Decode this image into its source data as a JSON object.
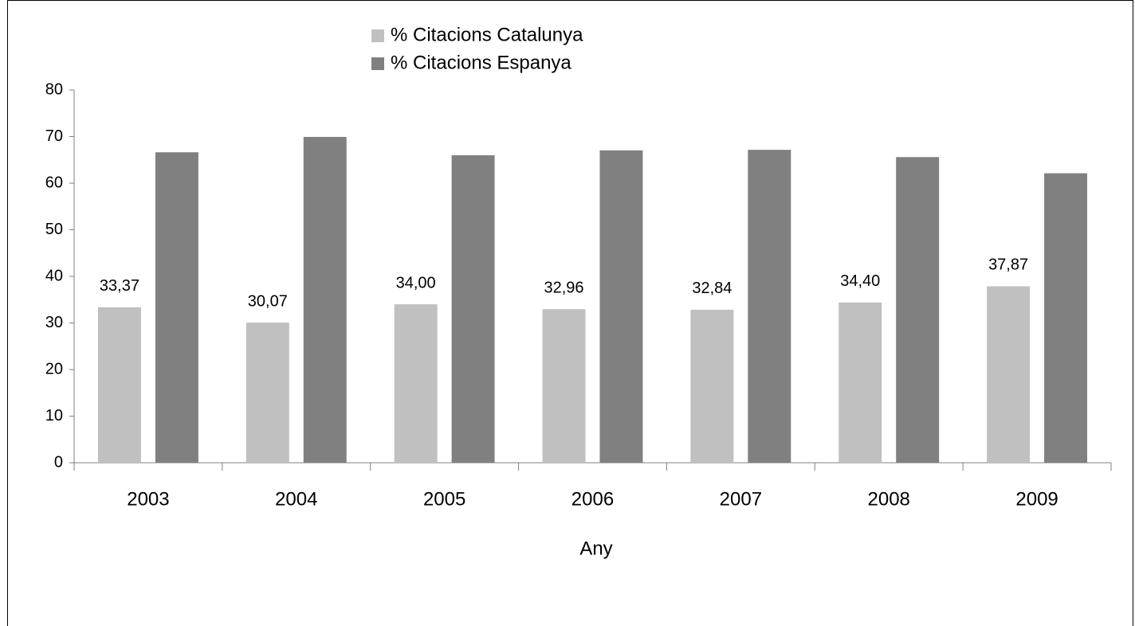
{
  "chart_data": {
    "type": "bar",
    "categories": [
      "2003",
      "2004",
      "2005",
      "2006",
      "2007",
      "2008",
      "2009"
    ],
    "series": [
      {
        "name": "% Citacions Catalunya",
        "color": "#c0c0c0",
        "values": [
          33.37,
          30.07,
          34.0,
          32.96,
          32.84,
          34.4,
          37.87
        ],
        "value_labels": [
          "33,37",
          "30,07",
          "34,00",
          "32,96",
          "32,84",
          "34,40",
          "37,87"
        ]
      },
      {
        "name": "% Citacions Espanya",
        "color": "#808080",
        "values": [
          66.63,
          69.93,
          66.0,
          67.04,
          67.16,
          65.6,
          62.13
        ]
      }
    ],
    "x_label": "Any",
    "ylim": [
      0,
      80
    ],
    "yticks": [
      0,
      10,
      20,
      30,
      40,
      50,
      60,
      70,
      80
    ],
    "grid": false,
    "legend": "top"
  }
}
